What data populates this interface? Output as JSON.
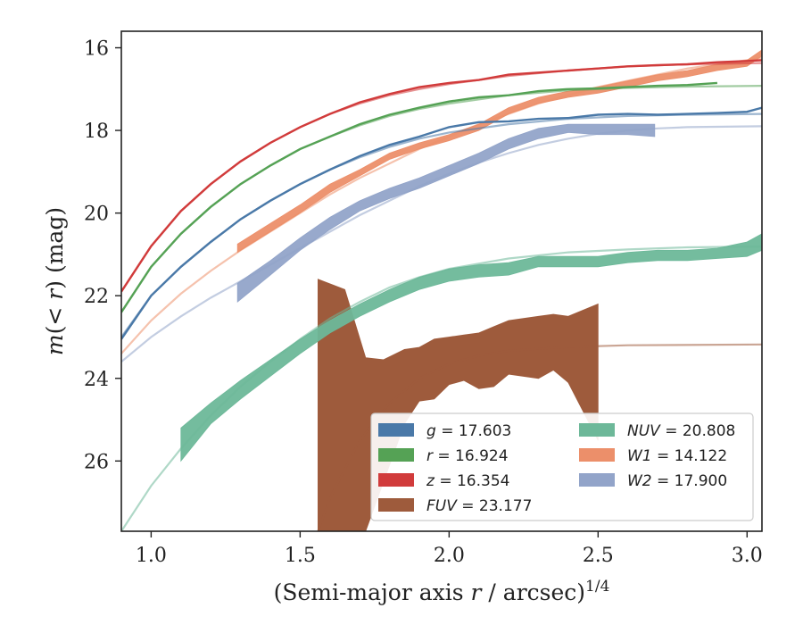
{
  "chart_data": {
    "type": "line",
    "xlabel": {
      "main": "(Semi-major axis r / arcsec)",
      "sup": "1/4",
      "var": "r"
    },
    "ylabel": {
      "main": "m(< r) (mag)",
      "var": "m",
      "op": "(< ",
      "var2": "r",
      "tail": ") (mag)"
    },
    "xlim": [
      0.9,
      3.05
    ],
    "ylim": [
      27.7,
      15.6
    ],
    "y_inverted": true,
    "grid": false,
    "legend_position": "lower-right",
    "xticks": [
      1.0,
      1.5,
      2.0,
      2.5,
      3.0
    ],
    "xtick_labels": [
      "1.0",
      "1.5",
      "2.0",
      "2.5",
      "3.0"
    ],
    "yticks": [
      16,
      18,
      20,
      22,
      24,
      26
    ],
    "ytick_labels": [
      "16",
      "18",
      "20",
      "22",
      "24",
      "26"
    ],
    "series": [
      {
        "name": "g",
        "label_var": "g",
        "label_val": "= 17.603",
        "color": "#4a79a8",
        "width": 2.4,
        "model": [
          [
            0.9,
            23.0
          ],
          [
            1.0,
            22.0
          ],
          [
            1.1,
            21.3
          ],
          [
            1.2,
            20.7
          ],
          [
            1.3,
            20.15
          ],
          [
            1.4,
            19.7
          ],
          [
            1.5,
            19.3
          ],
          [
            1.6,
            18.95
          ],
          [
            1.7,
            18.65
          ],
          [
            1.8,
            18.4
          ],
          [
            1.9,
            18.2
          ],
          [
            2.0,
            18.05
          ],
          [
            2.2,
            17.85
          ],
          [
            2.4,
            17.72
          ],
          [
            2.6,
            17.65
          ],
          [
            2.8,
            17.62
          ],
          [
            3.05,
            17.6
          ]
        ],
        "data": [
          [
            0.9,
            23.05
          ],
          [
            1.0,
            22.0
          ],
          [
            1.1,
            21.3
          ],
          [
            1.2,
            20.7
          ],
          [
            1.3,
            20.15
          ],
          [
            1.4,
            19.7
          ],
          [
            1.5,
            19.3
          ],
          [
            1.6,
            18.95
          ],
          [
            1.7,
            18.62
          ],
          [
            1.8,
            18.35
          ],
          [
            1.9,
            18.15
          ],
          [
            2.0,
            17.92
          ],
          [
            2.1,
            17.8
          ],
          [
            2.2,
            17.78
          ],
          [
            2.3,
            17.72
          ],
          [
            2.4,
            17.7
          ],
          [
            2.5,
            17.62
          ],
          [
            2.6,
            17.6
          ],
          [
            2.7,
            17.62
          ],
          [
            2.8,
            17.6
          ],
          [
            2.9,
            17.58
          ],
          [
            3.0,
            17.55
          ],
          [
            3.05,
            17.45
          ]
        ]
      },
      {
        "name": "r",
        "label_var": "r",
        "label_val": "= 16.924",
        "color": "#55a255",
        "width": 2.4,
        "model": [
          [
            0.9,
            22.4
          ],
          [
            1.0,
            21.3
          ],
          [
            1.1,
            20.5
          ],
          [
            1.2,
            19.85
          ],
          [
            1.3,
            19.3
          ],
          [
            1.4,
            18.85
          ],
          [
            1.5,
            18.45
          ],
          [
            1.6,
            18.15
          ],
          [
            1.7,
            17.88
          ],
          [
            1.8,
            17.65
          ],
          [
            1.9,
            17.48
          ],
          [
            2.0,
            17.35
          ],
          [
            2.2,
            17.15
          ],
          [
            2.4,
            17.03
          ],
          [
            2.6,
            16.97
          ],
          [
            2.8,
            16.94
          ],
          [
            3.05,
            16.92
          ]
        ],
        "data": [
          [
            0.9,
            22.4
          ],
          [
            1.0,
            21.3
          ],
          [
            1.1,
            20.5
          ],
          [
            1.2,
            19.85
          ],
          [
            1.3,
            19.3
          ],
          [
            1.4,
            18.85
          ],
          [
            1.5,
            18.45
          ],
          [
            1.6,
            18.15
          ],
          [
            1.7,
            17.85
          ],
          [
            1.8,
            17.62
          ],
          [
            1.9,
            17.45
          ],
          [
            2.0,
            17.3
          ],
          [
            2.1,
            17.2
          ],
          [
            2.2,
            17.15
          ],
          [
            2.3,
            17.05
          ],
          [
            2.4,
            17.0
          ],
          [
            2.5,
            16.98
          ],
          [
            2.6,
            16.95
          ],
          [
            2.7,
            16.92
          ],
          [
            2.8,
            16.9
          ],
          [
            2.9,
            16.85
          ]
        ]
      },
      {
        "name": "z",
        "label_var": "z",
        "label_val": "= 16.354",
        "color": "#d13b3b",
        "width": 2.4,
        "model": [
          [
            0.9,
            21.9
          ],
          [
            1.0,
            20.8
          ],
          [
            1.1,
            19.95
          ],
          [
            1.2,
            19.3
          ],
          [
            1.3,
            18.75
          ],
          [
            1.4,
            18.3
          ],
          [
            1.5,
            17.92
          ],
          [
            1.6,
            17.6
          ],
          [
            1.7,
            17.35
          ],
          [
            1.8,
            17.15
          ],
          [
            1.9,
            17.0
          ],
          [
            2.0,
            16.88
          ],
          [
            2.2,
            16.68
          ],
          [
            2.4,
            16.55
          ],
          [
            2.6,
            16.45
          ],
          [
            2.8,
            16.4
          ],
          [
            3.05,
            16.37
          ]
        ],
        "data": [
          [
            0.9,
            21.9
          ],
          [
            1.0,
            20.8
          ],
          [
            1.1,
            19.95
          ],
          [
            1.2,
            19.3
          ],
          [
            1.3,
            18.75
          ],
          [
            1.4,
            18.3
          ],
          [
            1.5,
            17.92
          ],
          [
            1.6,
            17.6
          ],
          [
            1.7,
            17.32
          ],
          [
            1.8,
            17.12
          ],
          [
            1.9,
            16.95
          ],
          [
            2.0,
            16.85
          ],
          [
            2.1,
            16.78
          ],
          [
            2.2,
            16.65
          ],
          [
            2.3,
            16.6
          ],
          [
            2.4,
            16.55
          ],
          [
            2.5,
            16.5
          ],
          [
            2.6,
            16.45
          ],
          [
            2.7,
            16.42
          ],
          [
            2.8,
            16.4
          ],
          [
            2.9,
            16.35
          ],
          [
            3.0,
            16.32
          ],
          [
            3.05,
            16.3
          ]
        ]
      },
      {
        "name": "NUV",
        "label_var": "NUV",
        "label_val": "= 20.808",
        "color": "#6db899",
        "width": 2.0,
        "model": [
          [
            0.9,
            27.7
          ],
          [
            1.0,
            26.6
          ],
          [
            1.1,
            25.7
          ],
          [
            1.2,
            24.9
          ],
          [
            1.3,
            24.2
          ],
          [
            1.4,
            23.6
          ],
          [
            1.5,
            23.05
          ],
          [
            1.6,
            22.55
          ],
          [
            1.7,
            22.15
          ],
          [
            1.8,
            21.8
          ],
          [
            1.9,
            21.55
          ],
          [
            2.0,
            21.35
          ],
          [
            2.2,
            21.1
          ],
          [
            2.4,
            20.95
          ],
          [
            2.6,
            20.88
          ],
          [
            2.8,
            20.83
          ],
          [
            3.05,
            20.81
          ]
        ],
        "band": [
          [
            1.1,
            25.2,
            26.0
          ],
          [
            1.2,
            24.6,
            25.1
          ],
          [
            1.3,
            24.05,
            24.5
          ],
          [
            1.4,
            23.55,
            23.95
          ],
          [
            1.5,
            23.05,
            23.4
          ],
          [
            1.6,
            22.6,
            22.9
          ],
          [
            1.7,
            22.2,
            22.5
          ],
          [
            1.8,
            21.85,
            22.15
          ],
          [
            1.9,
            21.55,
            21.85
          ],
          [
            2.0,
            21.35,
            21.65
          ],
          [
            2.1,
            21.25,
            21.55
          ],
          [
            2.2,
            21.2,
            21.5
          ],
          [
            2.3,
            21.05,
            21.3
          ],
          [
            2.4,
            21.05,
            21.3
          ],
          [
            2.5,
            21.05,
            21.3
          ],
          [
            2.6,
            20.95,
            21.2
          ],
          [
            2.7,
            20.9,
            21.15
          ],
          [
            2.8,
            20.9,
            21.15
          ],
          [
            2.9,
            20.85,
            21.1
          ],
          [
            3.0,
            20.7,
            21.05
          ],
          [
            3.05,
            20.5,
            20.9
          ]
        ]
      },
      {
        "name": "W1",
        "label_var": "W1",
        "label_val": "= 14.122",
        "color": "#ec8f6a",
        "width": 2.4,
        "model": [
          [
            0.9,
            23.4
          ],
          [
            1.0,
            22.6
          ],
          [
            1.1,
            21.95
          ],
          [
            1.2,
            21.4
          ],
          [
            1.3,
            20.9
          ],
          [
            1.4,
            20.45
          ],
          [
            1.5,
            20.0
          ],
          [
            1.6,
            19.55
          ],
          [
            1.7,
            19.15
          ],
          [
            1.8,
            18.8
          ],
          [
            1.9,
            18.45
          ],
          [
            2.0,
            18.15
          ],
          [
            2.1,
            17.85
          ],
          [
            2.2,
            17.6
          ],
          [
            2.3,
            17.35
          ],
          [
            2.4,
            17.15
          ],
          [
            2.5,
            16.95
          ],
          [
            2.6,
            16.8
          ],
          [
            2.7,
            16.65
          ],
          [
            2.8,
            16.5
          ],
          [
            2.9,
            16.4
          ],
          [
            3.0,
            16.3
          ],
          [
            3.05,
            16.25
          ]
        ],
        "band": [
          [
            1.29,
            20.75,
            20.95
          ],
          [
            1.4,
            20.25,
            20.45
          ],
          [
            1.5,
            19.8,
            20.0
          ],
          [
            1.6,
            19.3,
            19.5
          ],
          [
            1.7,
            18.95,
            19.1
          ],
          [
            1.8,
            18.55,
            18.7
          ],
          [
            1.9,
            18.3,
            18.45
          ],
          [
            2.0,
            18.1,
            18.25
          ],
          [
            2.1,
            17.85,
            18.0
          ],
          [
            2.2,
            17.45,
            17.6
          ],
          [
            2.3,
            17.2,
            17.35
          ],
          [
            2.4,
            17.05,
            17.2
          ],
          [
            2.5,
            16.95,
            17.1
          ],
          [
            2.6,
            16.8,
            16.95
          ],
          [
            2.7,
            16.65,
            16.8
          ],
          [
            2.8,
            16.55,
            16.7
          ],
          [
            2.9,
            16.4,
            16.55
          ],
          [
            3.0,
            16.3,
            16.45
          ],
          [
            3.05,
            16.05,
            16.2
          ]
        ]
      },
      {
        "name": "W2",
        "label_var": "W2",
        "label_val": "= 17.900",
        "color": "#92a4c9",
        "width": 2.0,
        "model": [
          [
            0.9,
            23.6
          ],
          [
            1.0,
            23.0
          ],
          [
            1.1,
            22.5
          ],
          [
            1.2,
            22.05
          ],
          [
            1.3,
            21.65
          ],
          [
            1.4,
            21.25
          ],
          [
            1.5,
            20.85
          ],
          [
            1.6,
            20.45
          ],
          [
            1.7,
            20.05
          ],
          [
            1.8,
            19.7
          ],
          [
            1.9,
            19.35
          ],
          [
            2.0,
            19.05
          ],
          [
            2.1,
            18.78
          ],
          [
            2.2,
            18.55
          ],
          [
            2.3,
            18.35
          ],
          [
            2.4,
            18.2
          ],
          [
            2.5,
            18.08
          ],
          [
            2.6,
            18.0
          ],
          [
            2.7,
            17.95
          ],
          [
            2.8,
            17.92
          ],
          [
            3.05,
            17.9
          ]
        ],
        "band": [
          [
            1.29,
            21.7,
            22.15
          ],
          [
            1.4,
            21.15,
            21.5
          ],
          [
            1.5,
            20.6,
            20.9
          ],
          [
            1.6,
            20.1,
            20.4
          ],
          [
            1.7,
            19.7,
            19.95
          ],
          [
            1.8,
            19.4,
            19.65
          ],
          [
            1.9,
            19.15,
            19.4
          ],
          [
            2.0,
            18.85,
            19.1
          ],
          [
            2.1,
            18.55,
            18.8
          ],
          [
            2.2,
            18.2,
            18.45
          ],
          [
            2.3,
            17.95,
            18.2
          ],
          [
            2.4,
            17.85,
            18.05
          ],
          [
            2.5,
            17.85,
            18.1
          ],
          [
            2.6,
            17.85,
            18.1
          ],
          [
            2.69,
            17.85,
            18.15
          ]
        ]
      },
      {
        "name": "FUV",
        "label_var": "FUV",
        "label_val": "= 23.177",
        "color": "#9e5b3c",
        "width": 2.0,
        "model": [
          [
            1.56,
            27.7
          ],
          [
            1.6,
            26.9
          ],
          [
            1.7,
            25.5
          ],
          [
            1.8,
            24.6
          ],
          [
            1.9,
            24.0
          ],
          [
            2.0,
            23.65
          ],
          [
            2.1,
            23.45
          ],
          [
            2.2,
            23.33
          ],
          [
            2.4,
            23.24
          ],
          [
            2.6,
            23.2
          ],
          [
            3.05,
            23.18
          ]
        ],
        "band": [
          [
            1.56,
            21.6,
            27.7
          ],
          [
            1.65,
            21.85,
            27.7
          ],
          [
            1.72,
            23.5,
            27.7
          ],
          [
            1.78,
            23.55,
            26.5
          ],
          [
            1.85,
            23.3,
            25.1
          ],
          [
            1.9,
            23.25,
            24.55
          ],
          [
            1.95,
            23.05,
            24.5
          ],
          [
            2.0,
            23.0,
            24.15
          ],
          [
            2.05,
            22.95,
            24.05
          ],
          [
            2.1,
            22.9,
            24.25
          ],
          [
            2.15,
            22.75,
            24.2
          ],
          [
            2.2,
            22.6,
            23.9
          ],
          [
            2.3,
            22.5,
            24.0
          ],
          [
            2.35,
            22.45,
            23.8
          ],
          [
            2.4,
            22.5,
            24.1
          ],
          [
            2.5,
            22.2,
            25.5
          ]
        ]
      }
    ]
  }
}
